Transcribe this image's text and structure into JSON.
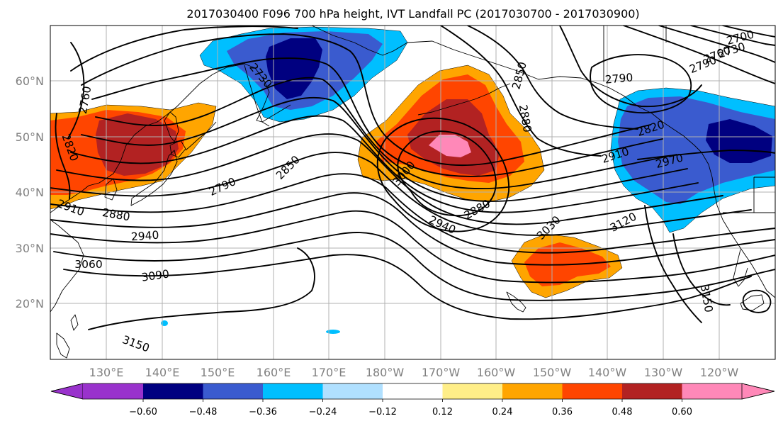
{
  "title": "2017030400 F096 700 hPa height, IVT Landfall PC (2017030700 - 2017030900)",
  "map": {
    "lat_ticks": [
      "60°N",
      "50°N",
      "40°N",
      "30°N",
      "20°N"
    ],
    "lon_ticks": [
      "130°E",
      "140°E",
      "150°E",
      "160°E",
      "170°E",
      "180°W",
      "170°W",
      "160°W",
      "150°W",
      "140°W",
      "130°W",
      "120°W"
    ],
    "lon_range": [
      120,
      250
    ],
    "lat_range": [
      10,
      70
    ],
    "grid": true,
    "contour_labels": [
      "2820",
      "2760",
      "2910",
      "2880",
      "2940",
      "3060",
      "3090",
      "3150",
      "2790",
      "2850",
      "2730",
      "3000",
      "2880",
      "2940",
      "3030",
      "3120",
      "2850",
      "2880",
      "2790",
      "2820",
      "2910",
      "2970",
      "3150",
      "2700",
      "2730",
      "2760",
      "2790"
    ]
  },
  "shading": {
    "colors": {
      "neg_060": "#000080",
      "neg_048": "#3a5bcf",
      "neg_036": "#00bfff",
      "neg_024": "#b0e0ff",
      "pos_024": "#ffa500",
      "pos_036": "#ff4500",
      "pos_048": "#b22222",
      "pos_060": "#ff88b8"
    }
  },
  "colorbar": {
    "ticks": [
      "−0.60",
      "−0.48",
      "−0.36",
      "−0.24",
      "−0.12",
      "0.12",
      "0.24",
      "0.36",
      "0.48",
      "0.60"
    ],
    "colors": [
      "#9932cc",
      "#000080",
      "#3a5bcf",
      "#00bfff",
      "#b0e0ff",
      "#ffffff",
      "#ffee88",
      "#ffa500",
      "#ff4500",
      "#b22222",
      "#ff88b8"
    ]
  }
}
